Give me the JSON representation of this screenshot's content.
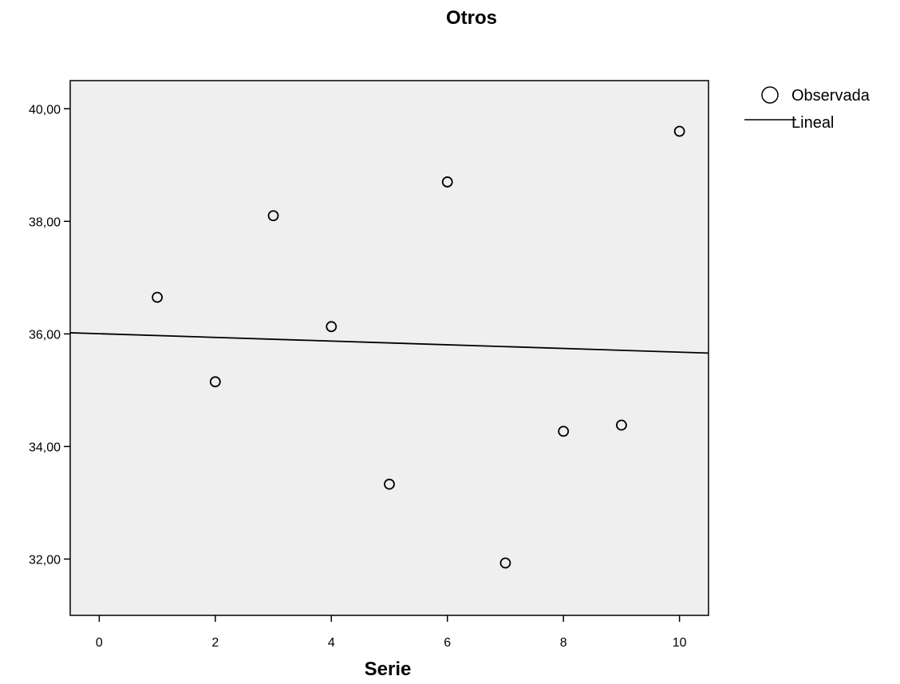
{
  "chart_data": {
    "type": "scatter",
    "title": "Otros",
    "xlabel": "Serie",
    "ylabel": "",
    "xlim": [
      -0.5,
      10.5
    ],
    "ylim": [
      31.0,
      40.5
    ],
    "x_ticks": [
      0,
      2,
      4,
      6,
      8,
      10
    ],
    "x_tick_labels": [
      "0",
      "2",
      "4",
      "6",
      "8",
      "10"
    ],
    "y_ticks": [
      32,
      34,
      36,
      38,
      40
    ],
    "y_tick_labels": [
      "32,00",
      "34,00",
      "36,00",
      "38,00",
      "40,00"
    ],
    "grid": false,
    "plot_background": "#efefef",
    "legend_position": "top-right, outside plot",
    "series": [
      {
        "name": "Observada",
        "kind": "points",
        "marker": "open-circle",
        "x": [
          1,
          2,
          3,
          4,
          5,
          6,
          7,
          8,
          9,
          10
        ],
        "y": [
          36.65,
          35.15,
          38.1,
          36.13,
          33.33,
          38.7,
          31.93,
          34.27,
          34.38,
          39.6
        ]
      },
      {
        "name": "Lineal",
        "kind": "line",
        "x": [
          -0.5,
          10.5
        ],
        "y": [
          36.02,
          35.66
        ]
      }
    ]
  }
}
